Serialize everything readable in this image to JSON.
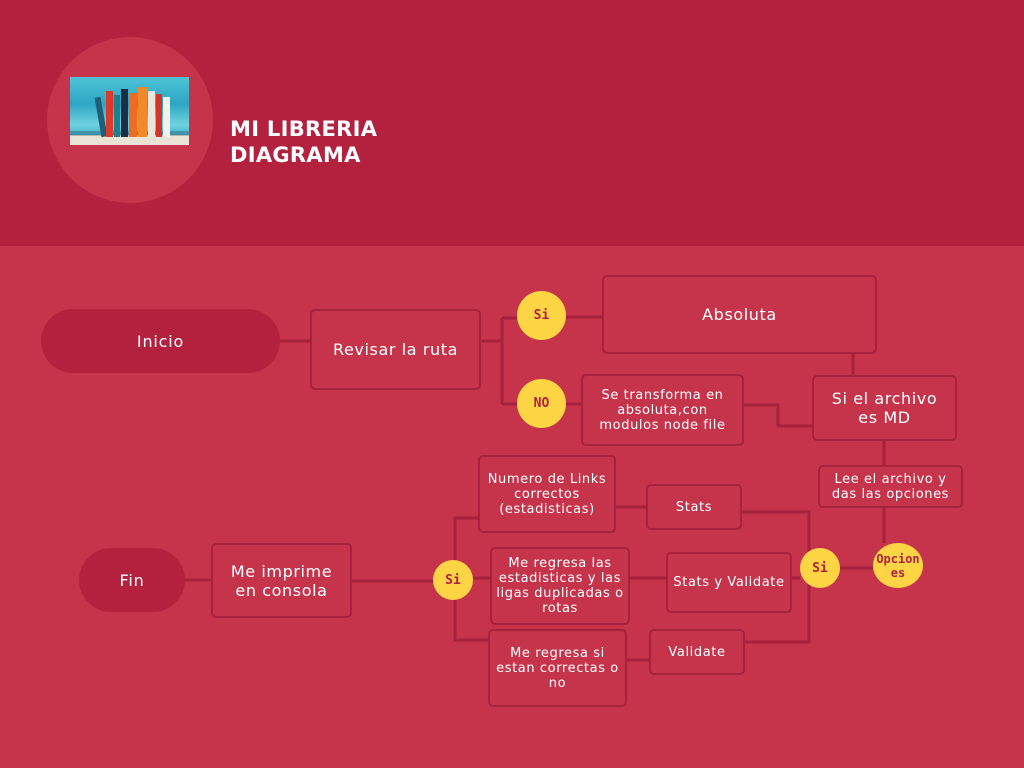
{
  "header": {
    "title_line1": "MI LIBRERIA",
    "title_line2": "DIAGRAMA"
  },
  "nodes": {
    "inicio": "Inicio",
    "revisar_ruta": "Revisar la ruta",
    "si_ruta": "Si",
    "absoluta": "Absoluta",
    "no_ruta": "NO",
    "transforma": "Se transforma en absoluta,con modulos node file",
    "archivo_md": "Si el archivo es MD",
    "lee_archivo": "Lee el archivo y das las opciones",
    "opciones": "Opciones",
    "si_opciones": "Si",
    "stats": "Stats",
    "stats_validate": "Stats y Validate",
    "validate": "Validate",
    "numero_links": "Numero de Links correctos (estadisticas)",
    "regresa_estadisticas": "Me regresa las estadisticas y las ligas duplicadas o rotas",
    "regresa_correctas": "Me regresa  si estan correctas o no",
    "si_imprime": "Si",
    "imprime": "Me imprime en consola",
    "fin": "Fin"
  },
  "colors": {
    "header_bg": "#b3213f",
    "body_bg": "#c5344b",
    "box_border": "#a8213c",
    "decision_dot": "#fdd444",
    "text": "#ffffff"
  }
}
